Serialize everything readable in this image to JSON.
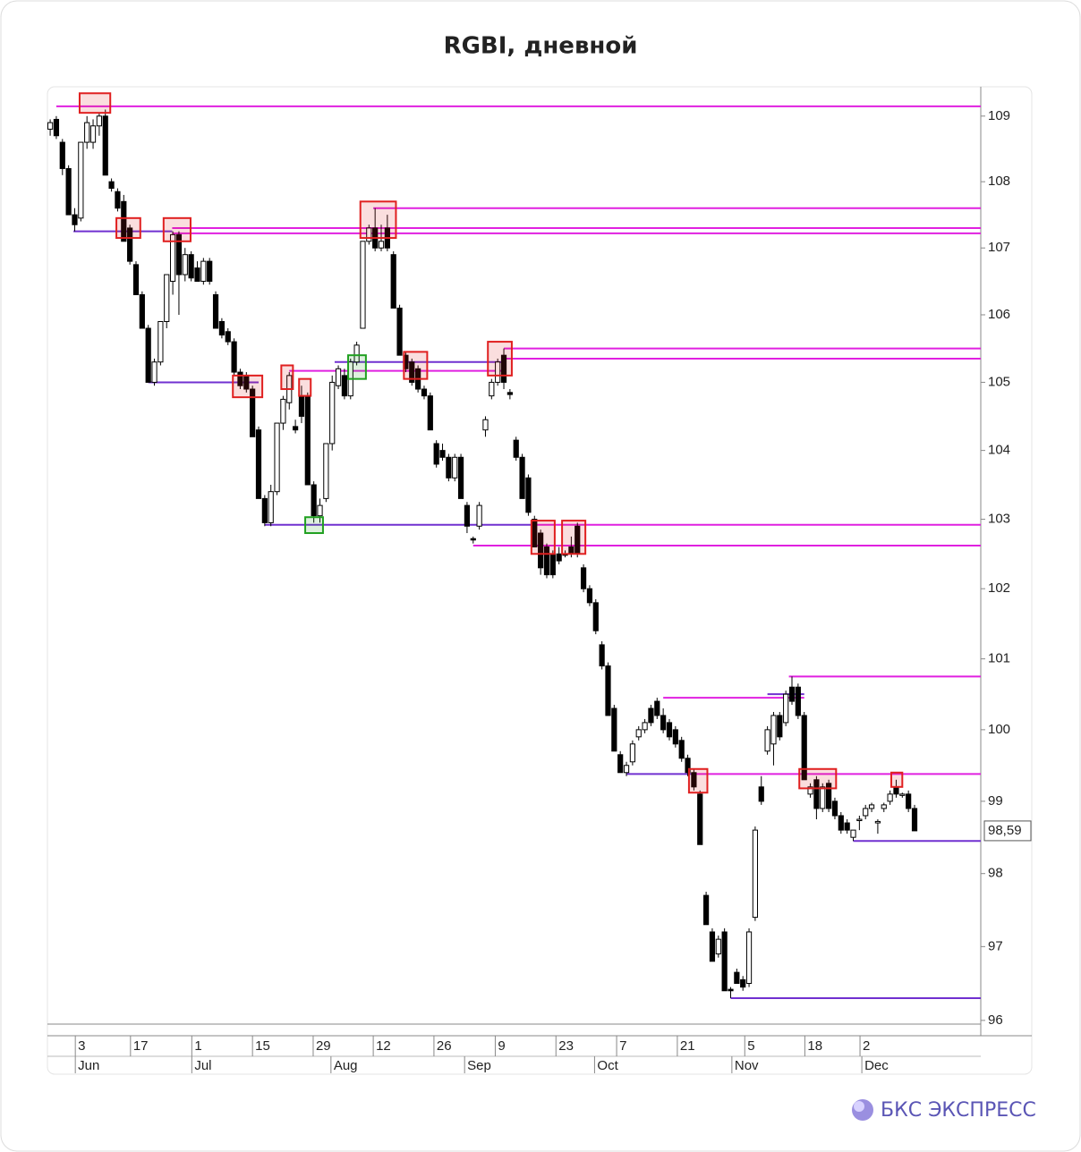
{
  "chart_data": {
    "type": "candlestick",
    "title": "RGBI, дневной",
    "brand": "БКС ЭКСПРЕСС",
    "log_scale": true,
    "up_color": "#ffffff",
    "down_color": "#000000",
    "ylim": [
      95.95,
      109.45
    ],
    "yticks": [
      96,
      97,
      98,
      99,
      100,
      101,
      102,
      103,
      104,
      105,
      106,
      107,
      108,
      109
    ],
    "xlim": [
      -0.45,
      151.8
    ],
    "xticks": [
      {
        "value": 4.1,
        "label": "3"
      },
      {
        "value": 13.1,
        "label": "17"
      },
      {
        "value": 23.1,
        "label": "1"
      },
      {
        "value": 33.0,
        "label": "15"
      },
      {
        "value": 42.9,
        "label": "29"
      },
      {
        "value": 52.7,
        "label": "12"
      },
      {
        "value": 62.6,
        "label": "26"
      },
      {
        "value": 72.6,
        "label": "9"
      },
      {
        "value": 82.5,
        "label": "23"
      },
      {
        "value": 92.4,
        "label": "7"
      },
      {
        "value": 102.3,
        "label": "21"
      },
      {
        "value": 113.3,
        "label": "5"
      },
      {
        "value": 123.1,
        "label": "18"
      },
      {
        "value": 132.1,
        "label": "2"
      }
    ],
    "month_ticks": [
      {
        "value": 4.1,
        "label": "Jun"
      },
      {
        "value": 23.1,
        "label": "Jul"
      },
      {
        "value": 45.8,
        "label": "Aug"
      },
      {
        "value": 67.6,
        "label": "Sep"
      },
      {
        "value": 88.8,
        "label": "Oct"
      },
      {
        "value": 111.2,
        "label": "Nov"
      },
      {
        "value": 132.4,
        "label": "Dec"
      }
    ],
    "last_price": {
      "value": 98.59,
      "label": "98,59"
    },
    "ohlc": [
      [
        108.8,
        108.95,
        108.7,
        108.9
      ],
      [
        108.95,
        109.0,
        108.65,
        108.7
      ],
      [
        108.6,
        108.65,
        108.1,
        108.2
      ],
      [
        108.2,
        108.25,
        107.5,
        107.5
      ],
      [
        107.5,
        107.6,
        107.25,
        107.35
      ],
      [
        107.45,
        108.6,
        107.4,
        108.6
      ],
      [
        108.6,
        109.0,
        108.5,
        108.9
      ],
      [
        108.6,
        108.95,
        108.5,
        108.85
      ],
      [
        108.85,
        109.05,
        108.7,
        109.0
      ],
      [
        109.0,
        109.1,
        108.1,
        108.1
      ],
      [
        108.0,
        108.05,
        107.85,
        107.9
      ],
      [
        107.85,
        107.9,
        107.55,
        107.6
      ],
      [
        107.7,
        107.8,
        107.1,
        107.1
      ],
      [
        107.3,
        107.35,
        106.75,
        106.8
      ],
      [
        106.75,
        106.8,
        106.3,
        106.3
      ],
      [
        106.3,
        106.35,
        105.8,
        105.8
      ],
      [
        105.8,
        105.85,
        105.0,
        105.0
      ],
      [
        105.0,
        105.35,
        104.95,
        105.3
      ],
      [
        105.3,
        105.9,
        105.25,
        105.9
      ],
      [
        105.9,
        106.6,
        105.8,
        106.6
      ],
      [
        106.5,
        107.25,
        106.3,
        107.2
      ],
      [
        107.2,
        107.25,
        106.0,
        106.6
      ],
      [
        106.6,
        107.0,
        106.5,
        106.9
      ],
      [
        106.9,
        106.95,
        106.5,
        106.55
      ],
      [
        106.7,
        106.8,
        106.5,
        106.5
      ],
      [
        106.5,
        106.85,
        106.45,
        106.8
      ],
      [
        106.8,
        106.85,
        106.45,
        106.5
      ],
      [
        106.3,
        106.35,
        105.8,
        105.8
      ],
      [
        105.9,
        105.95,
        105.65,
        105.7
      ],
      [
        105.75,
        105.8,
        105.55,
        105.6
      ],
      [
        105.6,
        105.65,
        105.1,
        105.15
      ],
      [
        105.15,
        105.2,
        104.9,
        104.95
      ],
      [
        105.1,
        105.15,
        104.85,
        104.9
      ],
      [
        104.9,
        104.95,
        104.2,
        104.2
      ],
      [
        104.3,
        104.35,
        103.3,
        103.3
      ],
      [
        103.3,
        103.35,
        102.9,
        102.95
      ],
      [
        102.95,
        103.5,
        102.9,
        103.4
      ],
      [
        103.4,
        104.4,
        103.35,
        104.4
      ],
      [
        104.4,
        104.8,
        104.3,
        104.75
      ],
      [
        104.7,
        105.15,
        104.6,
        105.1
      ],
      [
        104.35,
        104.45,
        104.25,
        104.3
      ],
      [
        104.8,
        104.95,
        104.4,
        104.5
      ],
      [
        104.8,
        104.85,
        103.5,
        103.5
      ],
      [
        103.5,
        103.55,
        102.95,
        103.05
      ],
      [
        103.05,
        103.3,
        102.95,
        103.2
      ],
      [
        103.3,
        104.1,
        103.25,
        104.1
      ],
      [
        104.1,
        105.1,
        104.0,
        105.0
      ],
      [
        104.95,
        105.25,
        104.9,
        105.2
      ],
      [
        105.1,
        105.2,
        104.75,
        104.8
      ],
      [
        104.8,
        105.35,
        104.75,
        105.3
      ],
      [
        105.3,
        105.6,
        105.25,
        105.55
      ],
      [
        105.8,
        107.1,
        105.8,
        107.1
      ],
      [
        107.1,
        107.35,
        107.05,
        107.3
      ],
      [
        107.3,
        107.6,
        106.95,
        107.0
      ],
      [
        107.0,
        107.35,
        106.95,
        107.1
      ],
      [
        107.3,
        107.5,
        106.95,
        107.0
      ],
      [
        106.9,
        106.95,
        106.1,
        106.1
      ],
      [
        106.1,
        106.15,
        105.4,
        105.4
      ],
      [
        105.4,
        105.45,
        105.15,
        105.2
      ],
      [
        105.3,
        105.35,
        104.95,
        105.0
      ],
      [
        105.2,
        105.25,
        104.85,
        104.9
      ],
      [
        104.9,
        104.95,
        104.75,
        104.8
      ],
      [
        104.8,
        104.85,
        104.3,
        104.3
      ],
      [
        104.1,
        104.15,
        103.75,
        103.8
      ],
      [
        104.0,
        104.1,
        103.85,
        103.9
      ],
      [
        103.9,
        103.95,
        103.55,
        103.6
      ],
      [
        103.6,
        103.95,
        103.55,
        103.9
      ],
      [
        103.9,
        103.95,
        103.3,
        103.3
      ],
      [
        103.2,
        103.25,
        102.8,
        102.9
      ],
      [
        102.72,
        102.75,
        102.65,
        102.7
      ],
      [
        102.9,
        103.25,
        102.85,
        103.2
      ],
      [
        104.3,
        104.5,
        104.2,
        104.45
      ],
      [
        104.8,
        105.05,
        104.75,
        105.0
      ],
      [
        105.0,
        105.35,
        104.95,
        105.3
      ],
      [
        105.4,
        105.5,
        104.9,
        105.0
      ],
      [
        104.85,
        104.9,
        104.75,
        104.82
      ],
      [
        104.15,
        104.2,
        103.85,
        103.9
      ],
      [
        103.9,
        103.95,
        103.3,
        103.3
      ],
      [
        103.6,
        103.65,
        103.05,
        103.1
      ],
      [
        103.0,
        103.05,
        102.6,
        102.6
      ],
      [
        102.8,
        102.85,
        102.2,
        102.3
      ],
      [
        102.6,
        102.65,
        102.15,
        102.2
      ],
      [
        102.5,
        102.55,
        102.15,
        102.2
      ],
      [
        102.5,
        102.6,
        102.35,
        102.4
      ],
      [
        102.5,
        102.55,
        102.45,
        102.48
      ],
      [
        102.6,
        102.75,
        102.45,
        102.5
      ],
      [
        102.9,
        102.95,
        102.45,
        102.5
      ],
      [
        102.3,
        102.35,
        101.95,
        102.0
      ],
      [
        102.0,
        102.05,
        101.75,
        101.8
      ],
      [
        101.8,
        101.85,
        101.35,
        101.4
      ],
      [
        101.2,
        101.25,
        100.85,
        100.9
      ],
      [
        100.9,
        100.95,
        100.2,
        100.2
      ],
      [
        100.3,
        100.35,
        99.7,
        99.7
      ],
      [
        99.65,
        99.7,
        99.4,
        99.4
      ],
      [
        99.4,
        99.55,
        99.35,
        99.5
      ],
      [
        99.55,
        99.85,
        99.5,
        99.8
      ],
      [
        99.9,
        100.05,
        99.85,
        100.0
      ],
      [
        100.0,
        100.15,
        99.95,
        100.1
      ],
      [
        100.3,
        100.35,
        100.05,
        100.1
      ],
      [
        100.4,
        100.45,
        100.15,
        100.2
      ],
      [
        100.2,
        100.3,
        99.95,
        100.0
      ],
      [
        100.1,
        100.15,
        99.85,
        99.9
      ],
      [
        100.0,
        100.05,
        99.75,
        99.8
      ],
      [
        99.85,
        99.9,
        99.55,
        99.6
      ],
      [
        99.6,
        99.65,
        99.35,
        99.4
      ],
      [
        99.4,
        99.45,
        99.15,
        99.2
      ],
      [
        99.1,
        99.15,
        98.4,
        98.4
      ],
      [
        97.7,
        97.75,
        97.3,
        97.3
      ],
      [
        97.2,
        97.25,
        96.8,
        96.8
      ],
      [
        96.9,
        97.15,
        96.85,
        97.1
      ],
      [
        97.2,
        97.25,
        96.4,
        96.4
      ],
      [
        96.42,
        96.45,
        96.3,
        96.4
      ],
      [
        96.65,
        96.7,
        96.5,
        96.5
      ],
      [
        96.55,
        96.6,
        96.4,
        96.45
      ],
      [
        96.5,
        97.25,
        96.45,
        97.2
      ],
      [
        97.4,
        98.65,
        97.35,
        98.6
      ],
      [
        99.2,
        99.35,
        98.95,
        99.0
      ],
      [
        99.7,
        100.05,
        99.65,
        100.0
      ],
      [
        99.8,
        100.25,
        99.5,
        100.2
      ],
      [
        100.2,
        100.25,
        99.85,
        99.9
      ],
      [
        100.1,
        100.55,
        100.05,
        100.5
      ],
      [
        100.6,
        100.75,
        100.35,
        100.4
      ],
      [
        100.6,
        100.65,
        100.15,
        100.2
      ],
      [
        100.2,
        100.25,
        99.3,
        99.3
      ],
      [
        99.1,
        99.25,
        99.05,
        99.2
      ],
      [
        99.3,
        99.35,
        98.75,
        98.9
      ],
      [
        98.9,
        99.25,
        98.85,
        99.2
      ],
      [
        99.25,
        99.3,
        98.85,
        98.9
      ],
      [
        99.0,
        99.05,
        98.75,
        98.8
      ],
      [
        98.8,
        98.85,
        98.55,
        98.6
      ],
      [
        98.7,
        98.75,
        98.55,
        98.6
      ],
      [
        98.5,
        98.6,
        98.45,
        98.6
      ],
      [
        98.75,
        98.8,
        98.6,
        98.75
      ],
      [
        98.8,
        98.95,
        98.75,
        98.9
      ],
      [
        98.9,
        98.98,
        98.85,
        98.95
      ],
      [
        98.7,
        98.75,
        98.55,
        98.72
      ],
      [
        98.9,
        98.98,
        98.85,
        98.95
      ],
      [
        99.0,
        99.15,
        98.95,
        99.1
      ],
      [
        99.2,
        99.3,
        99.05,
        99.1
      ],
      [
        99.1,
        99.12,
        99.05,
        99.1
      ],
      [
        99.1,
        99.15,
        98.85,
        98.9
      ],
      [
        98.9,
        98.95,
        98.59,
        98.59
      ]
    ],
    "levels": [
      {
        "x": 1.0,
        "y": 109.15,
        "color": "#e020e0"
      },
      {
        "x": 3.8,
        "x_end": 19.9,
        "y": 107.25,
        "color": "#7030d0"
      },
      {
        "x": 19.9,
        "y": 107.3,
        "color": "#e020e0"
      },
      {
        "x": 19.9,
        "y": 107.22,
        "color": "#e020e0"
      },
      {
        "x": 52.7,
        "y": 107.6,
        "color": "#e020e0"
      },
      {
        "x": 16.0,
        "x_end": 34.0,
        "y": 105.0,
        "color": "#7030d0"
      },
      {
        "x": 39.0,
        "x_end": 74.0,
        "y": 105.17,
        "color": "#e020e0"
      },
      {
        "x": 46.4,
        "x_end": 74.0,
        "y": 105.3,
        "color": "#7030d0"
      },
      {
        "x": 74.0,
        "y": 105.5,
        "color": "#e020e0"
      },
      {
        "x": 74.0,
        "y": 105.35,
        "color": "#e020e0"
      },
      {
        "x": 35.0,
        "x_end": 79.0,
        "y": 102.92,
        "color": "#7030d0"
      },
      {
        "x": 79.0,
        "y": 102.92,
        "color": "#e020e0"
      },
      {
        "x": 69.0,
        "y": 102.62,
        "color": "#e020e0"
      },
      {
        "x": 120.5,
        "y": 100.75,
        "color": "#e020e0"
      },
      {
        "x": 100.0,
        "x_end": 123.0,
        "y": 100.45,
        "color": "#e020e0"
      },
      {
        "x": 117.0,
        "x_end": 123.0,
        "y": 100.5,
        "color": "#7030d0"
      },
      {
        "x": 94.0,
        "x_end": 105.0,
        "y": 99.38,
        "color": "#7030d0"
      },
      {
        "x": 105.0,
        "y": 99.38,
        "color": "#e020e0"
      },
      {
        "x": 131.0,
        "y": 98.45,
        "color": "#7030d0"
      },
      {
        "x": 111.0,
        "y": 96.3,
        "color": "#7030d0"
      }
    ],
    "boxes": [
      {
        "x0": 4.8,
        "x1": 9.8,
        "y0": 109.05,
        "y1": 109.35,
        "color": "#e02020"
      },
      {
        "x0": 10.8,
        "x1": 14.7,
        "y0": 107.15,
        "y1": 107.45,
        "color": "#e02020"
      },
      {
        "x0": 18.5,
        "x1": 22.9,
        "y0": 107.1,
        "y1": 107.45,
        "color": "#e02020"
      },
      {
        "x0": 29.8,
        "x1": 34.6,
        "y0": 104.78,
        "y1": 105.1,
        "color": "#e02020"
      },
      {
        "x0": 37.7,
        "x1": 39.6,
        "y0": 104.9,
        "y1": 105.25,
        "color": "#e02020"
      },
      {
        "x0": 40.6,
        "x1": 42.5,
        "y0": 104.8,
        "y1": 105.05,
        "color": "#e02020"
      },
      {
        "x0": 41.6,
        "x1": 44.5,
        "y0": 102.8,
        "y1": 103.03,
        "color": "#20a020"
      },
      {
        "x0": 48.6,
        "x1": 51.5,
        "y0": 105.05,
        "y1": 105.4,
        "color": "#20a020"
      },
      {
        "x0": 50.6,
        "x1": 56.4,
        "y0": 107.15,
        "y1": 107.7,
        "color": "#e02020"
      },
      {
        "x0": 57.7,
        "x1": 61.5,
        "y0": 105.05,
        "y1": 105.45,
        "color": "#e02020"
      },
      {
        "x0": 71.4,
        "x1": 75.3,
        "y0": 105.1,
        "y1": 105.6,
        "color": "#e02020"
      },
      {
        "x0": 78.5,
        "x1": 82.3,
        "y0": 102.5,
        "y1": 102.98,
        "color": "#e02020"
      },
      {
        "x0": 83.5,
        "x1": 87.3,
        "y0": 102.5,
        "y1": 102.98,
        "color": "#e02020"
      },
      {
        "x0": 104.2,
        "x1": 107.2,
        "y0": 99.12,
        "y1": 99.45,
        "color": "#e02020"
      },
      {
        "x0": 122.2,
        "x1": 128.2,
        "y0": 99.18,
        "y1": 99.45,
        "color": "#e02020"
      },
      {
        "x0": 137.2,
        "x1": 139.0,
        "y0": 99.2,
        "y1": 99.4,
        "color": "#e02020"
      }
    ]
  }
}
